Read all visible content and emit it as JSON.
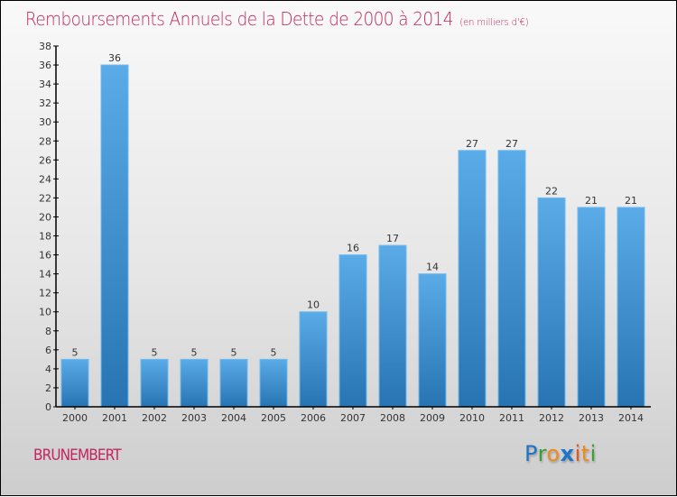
{
  "chart_data": {
    "type": "bar",
    "title": "Remboursements Annuels de la Dette de 2000 à 2014",
    "subtitle": "(en milliers d'€)",
    "xlabel": "",
    "ylabel": "",
    "categories": [
      "2000",
      "2001",
      "2002",
      "2003",
      "2004",
      "2005",
      "2006",
      "2007",
      "2008",
      "2009",
      "2010",
      "2011",
      "2012",
      "2013",
      "2014"
    ],
    "values": [
      5,
      36,
      5,
      5,
      5,
      5,
      10,
      16,
      17,
      14,
      27,
      27,
      22,
      21,
      21
    ],
    "ylim": [
      0,
      38
    ],
    "yticks": [
      0,
      2,
      4,
      6,
      8,
      10,
      12,
      14,
      16,
      18,
      20,
      22,
      24,
      26,
      28,
      30,
      32,
      34,
      36,
      38
    ],
    "grid": false,
    "legend": "none",
    "data_labels": true
  },
  "footer": {
    "commune": "BRUNEMBERT",
    "logo_letters": [
      {
        "ch": "P",
        "color": "#1f74c8"
      },
      {
        "ch": "r",
        "color": "#3aa035"
      },
      {
        "ch": "o",
        "color": "#f08a1c"
      },
      {
        "ch": "x",
        "color": "#1f74c8"
      },
      {
        "ch": "i",
        "color": "#e8541c"
      },
      {
        "ch": "t",
        "color": "#f08a1c"
      },
      {
        "ch": "i",
        "color": "#3aa035"
      }
    ]
  },
  "colors": {
    "title": "#c2255d",
    "bar_top": "#5aabe7",
    "bar_bottom": "#2874b3",
    "bar_border": "#6cbaf0",
    "axis": "#000000"
  }
}
